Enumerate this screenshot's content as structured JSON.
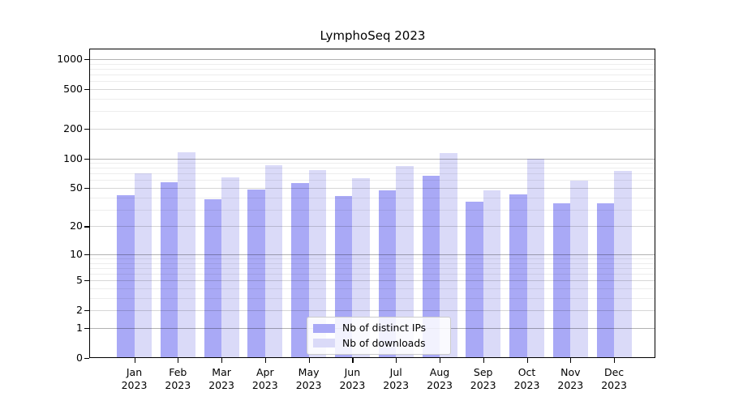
{
  "title": "LymphoSeq 2023",
  "colors": {
    "ips_bar": "#a9a9f6",
    "downloads_bar": "#dadaf8",
    "axis": "#000000"
  },
  "legend": {
    "items": [
      {
        "label": "Nb of distinct IPs",
        "series_key": "ips"
      },
      {
        "label": "Nb of downloads",
        "series_key": "downloads"
      }
    ]
  },
  "y_axis": {
    "scale": "log10(1+x)",
    "ticks": [
      {
        "value": 0,
        "label": "0"
      },
      {
        "value": 1,
        "label": "1"
      },
      {
        "value": 2,
        "label": "2"
      },
      {
        "value": 5,
        "label": "5"
      },
      {
        "value": 10,
        "label": "10"
      },
      {
        "value": 20,
        "label": "20"
      },
      {
        "value": 50,
        "label": "50"
      },
      {
        "value": 100,
        "label": "100"
      },
      {
        "value": 200,
        "label": "200"
      },
      {
        "value": 500,
        "label": "500"
      },
      {
        "value": 1000,
        "label": "1000"
      }
    ]
  },
  "x_axis": {
    "months": [
      "Jan",
      "Feb",
      "Mar",
      "Apr",
      "May",
      "Jun",
      "Jul",
      "Aug",
      "Sep",
      "Oct",
      "Nov",
      "Dec"
    ],
    "year": "2023"
  },
  "chart_data": {
    "type": "bar",
    "title": "LymphoSeq 2023",
    "categories": [
      "Jan 2023",
      "Feb 2023",
      "Mar 2023",
      "Apr 2023",
      "May 2023",
      "Jun 2023",
      "Jul 2023",
      "Aug 2023",
      "Sep 2023",
      "Oct 2023",
      "Nov 2023",
      "Dec 2023"
    ],
    "series": [
      {
        "name": "Nb of distinct IPs",
        "key": "ips",
        "color": "#a9a9f6",
        "values": [
          42,
          57,
          38,
          48,
          56,
          41,
          47,
          66,
          36,
          43,
          35,
          35
        ]
      },
      {
        "name": "Nb of downloads",
        "key": "downloads",
        "color": "#dadaf8",
        "values": [
          70,
          116,
          64,
          85,
          76,
          63,
          84,
          114,
          47,
          100,
          59,
          74
        ]
      }
    ],
    "xlabel": "",
    "ylabel": "",
    "y_scale": "log10(1+x)",
    "ylim": [
      0,
      1230
    ],
    "y_ticks": [
      0,
      1,
      2,
      5,
      10,
      20,
      50,
      100,
      200,
      500,
      1000
    ],
    "grid": true,
    "legend_position": "lower-center"
  }
}
